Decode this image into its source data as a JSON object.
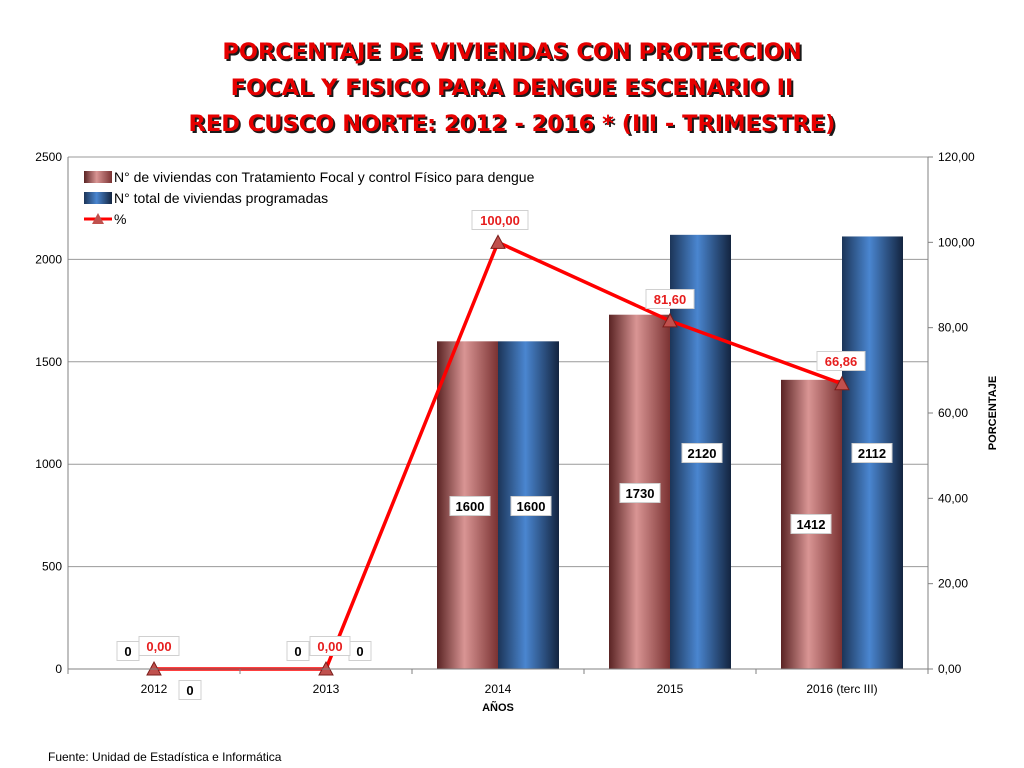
{
  "title_lines": [
    "PORCENTAJE  DE VIVIENDAS CON PROTECCION",
    "FOCAL Y FISICO PARA DENGUE ESCENARIO II",
    "RED CUSCO NORTE: 2012 - 2016 * (III - TRIMESTRE)"
  ],
  "footnote": "Fuente: Unidad de Estadística e Informática",
  "chart_data": {
    "type": "bar",
    "categories": [
      "2012",
      "2013",
      "2014",
      "2015",
      "2016 (terc III)"
    ],
    "xlabel": "AÑOS",
    "ylabel": "",
    "y2label": "PORCENTAJE",
    "ylim": [
      0,
      2500
    ],
    "yticks": [
      "0",
      "500",
      "1000",
      "1500",
      "2000",
      "2500"
    ],
    "y2lim": [
      0,
      120
    ],
    "y2ticks": [
      "0,00",
      "20,00",
      "40,00",
      "60,00",
      "80,00",
      "100,00",
      "120,00"
    ],
    "grid": true,
    "legend_position": "top-left",
    "series": [
      {
        "name": "N° de viviendas con Tratamiento Focal y  control Físico para dengue",
        "kind": "bar",
        "color": "#b56a6a",
        "values": [
          0,
          0,
          1600,
          1730,
          1412
        ],
        "labels": [
          "0",
          "0",
          "1600",
          "1730",
          "1412"
        ]
      },
      {
        "name": "N° total de viviendas programadas",
        "kind": "bar",
        "color": "#3b6fae",
        "values": [
          0,
          0,
          1600,
          2120,
          2112
        ],
        "labels": [
          "0",
          "0",
          "1600",
          "2120",
          "2112"
        ]
      },
      {
        "name": "%",
        "kind": "line",
        "axis": "secondary",
        "color": "#ff0000",
        "marker_color": "#c0504d",
        "values": [
          0,
          0,
          100,
          81.6,
          66.86
        ],
        "labels": [
          "0,00",
          "0,00",
          "100,00",
          "81,60",
          "66,86"
        ]
      }
    ]
  }
}
